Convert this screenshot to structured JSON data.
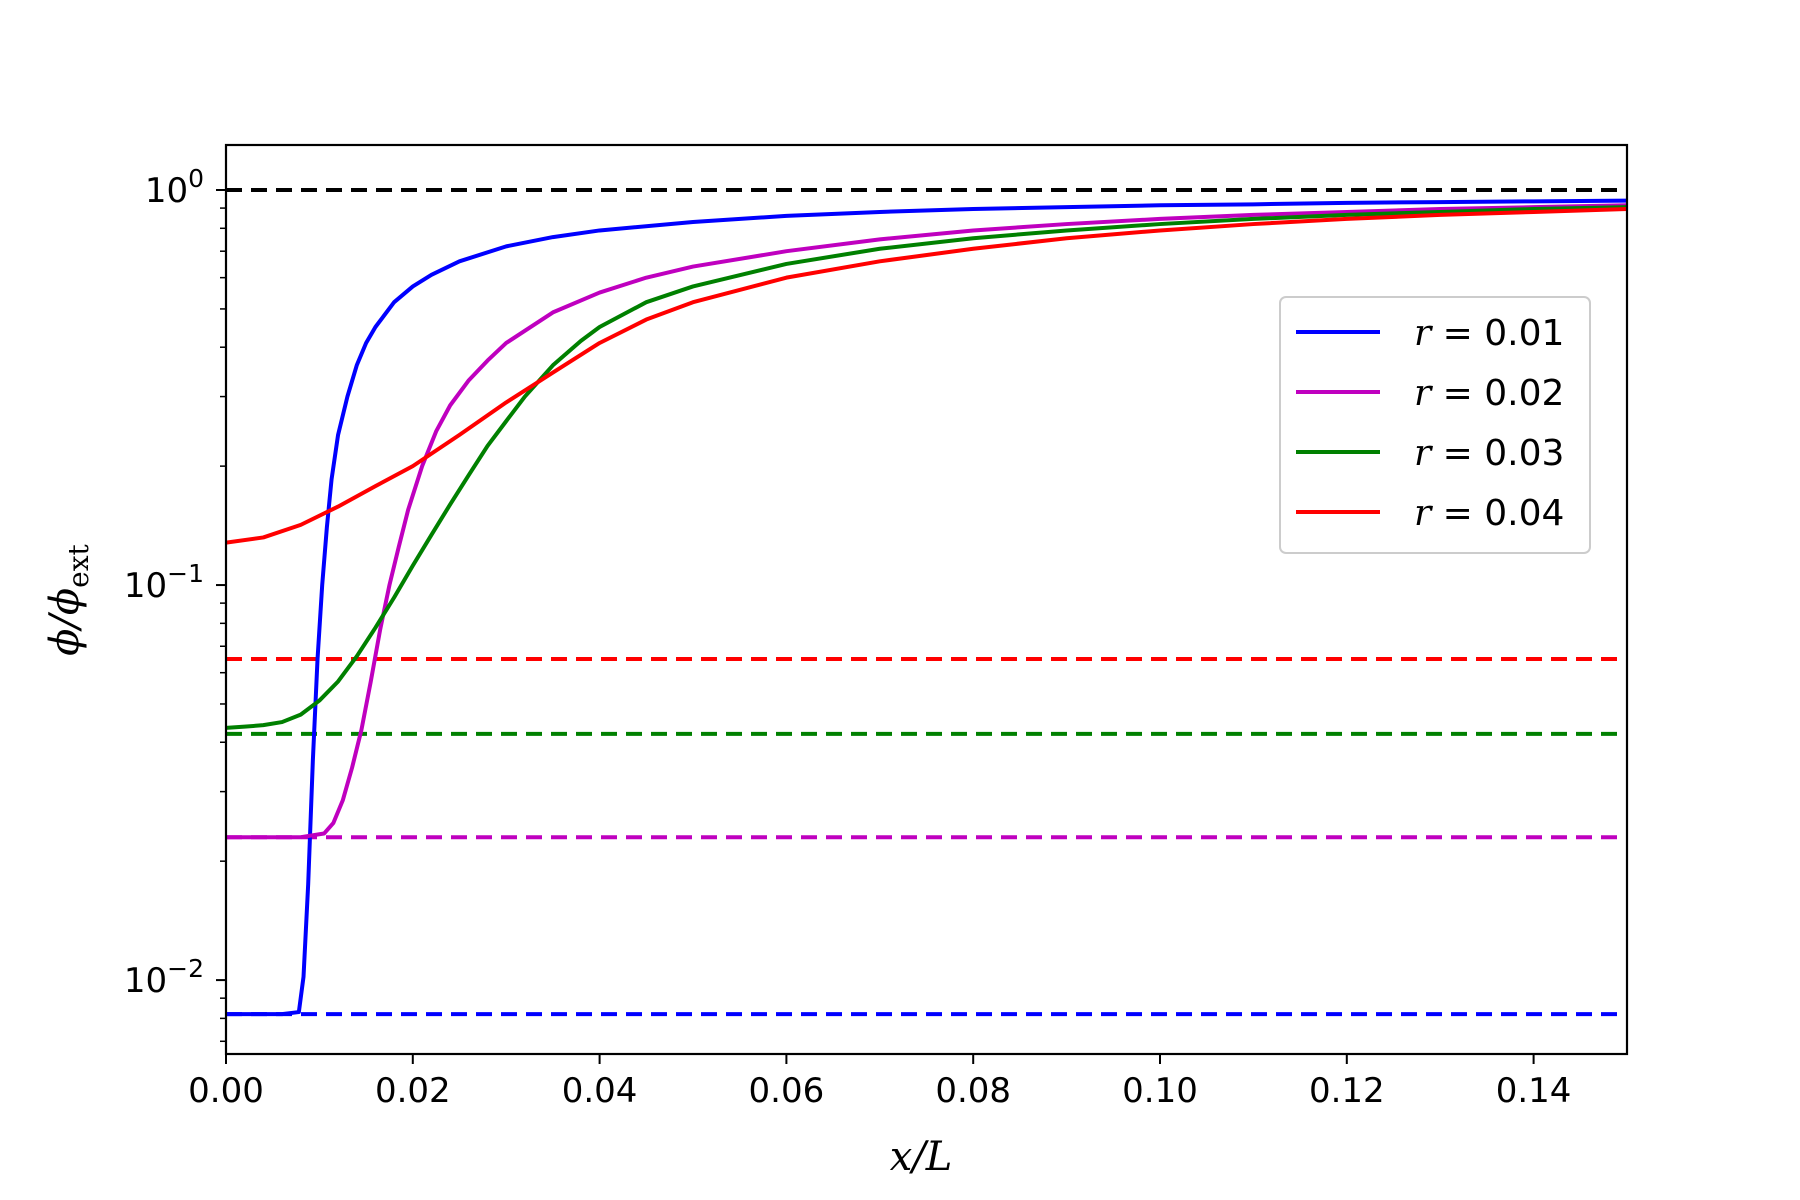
{
  "chart_data": {
    "type": "line",
    "xlabel": "x/L",
    "ylabel": "ϕ/ϕ_ext",
    "xlim": [
      0,
      0.15
    ],
    "ylim": [
      0.0065,
      1.3
    ],
    "yscale": "log",
    "grid": false,
    "legend_position": "right",
    "x_ticks": [
      {
        "value": 0.0,
        "label": "0.00"
      },
      {
        "value": 0.02,
        "label": "0.02"
      },
      {
        "value": 0.04,
        "label": "0.04"
      },
      {
        "value": 0.06,
        "label": "0.06"
      },
      {
        "value": 0.08,
        "label": "0.08"
      },
      {
        "value": 0.1,
        "label": "0.10"
      },
      {
        "value": 0.12,
        "label": "0.12"
      },
      {
        "value": 0.14,
        "label": "0.14"
      }
    ],
    "y_ticks": [
      {
        "value": 1,
        "base": "10",
        "exp": "0"
      },
      {
        "value": 0.1,
        "base": "10",
        "exp": "−1"
      },
      {
        "value": 0.01,
        "base": "10",
        "exp": "−2"
      }
    ],
    "series": [
      {
        "name": "r = 0.01",
        "color": "#0000ff",
        "x": [
          0,
          0.002,
          0.004,
          0.006,
          0.0078,
          0.0083,
          0.0088,
          0.0093,
          0.0098,
          0.0103,
          0.0108,
          0.0113,
          0.012,
          0.013,
          0.014,
          0.015,
          0.016,
          0.018,
          0.02,
          0.022,
          0.025,
          0.03,
          0.035,
          0.04,
          0.05,
          0.06,
          0.07,
          0.08,
          0.09,
          0.1,
          0.11,
          0.12,
          0.13,
          0.14,
          0.15
        ],
        "y": [
          0.0082,
          0.0082,
          0.0082,
          0.0082,
          0.0083,
          0.0102,
          0.0175,
          0.036,
          0.065,
          0.1,
          0.14,
          0.185,
          0.24,
          0.3,
          0.36,
          0.41,
          0.45,
          0.52,
          0.57,
          0.61,
          0.66,
          0.72,
          0.76,
          0.79,
          0.83,
          0.86,
          0.88,
          0.895,
          0.905,
          0.915,
          0.92,
          0.928,
          0.932,
          0.936,
          0.94
        ]
      },
      {
        "name": "r = 0.02",
        "color": "#bf00bf",
        "x": [
          0,
          0.004,
          0.008,
          0.0105,
          0.0115,
          0.0125,
          0.0135,
          0.0145,
          0.0155,
          0.0165,
          0.0175,
          0.0185,
          0.0195,
          0.021,
          0.0225,
          0.024,
          0.026,
          0.028,
          0.03,
          0.035,
          0.04,
          0.045,
          0.05,
          0.06,
          0.07,
          0.08,
          0.09,
          0.1,
          0.11,
          0.12,
          0.13,
          0.14,
          0.15
        ],
        "y": [
          0.023,
          0.023,
          0.023,
          0.0235,
          0.025,
          0.0285,
          0.0345,
          0.043,
          0.057,
          0.077,
          0.1,
          0.125,
          0.155,
          0.2,
          0.245,
          0.285,
          0.33,
          0.37,
          0.41,
          0.49,
          0.55,
          0.6,
          0.64,
          0.7,
          0.75,
          0.79,
          0.82,
          0.845,
          0.865,
          0.88,
          0.895,
          0.905,
          0.915
        ]
      },
      {
        "name": "r = 0.03",
        "color": "#008000",
        "x": [
          0,
          0.002,
          0.004,
          0.006,
          0.008,
          0.01,
          0.012,
          0.014,
          0.016,
          0.018,
          0.02,
          0.022,
          0.024,
          0.026,
          0.028,
          0.03,
          0.032,
          0.035,
          0.038,
          0.04,
          0.045,
          0.05,
          0.06,
          0.07,
          0.08,
          0.09,
          0.1,
          0.11,
          0.12,
          0.13,
          0.14,
          0.15
        ],
        "y": [
          0.0435,
          0.0438,
          0.0442,
          0.045,
          0.047,
          0.051,
          0.057,
          0.066,
          0.078,
          0.093,
          0.112,
          0.134,
          0.16,
          0.19,
          0.225,
          0.26,
          0.3,
          0.36,
          0.415,
          0.45,
          0.52,
          0.57,
          0.65,
          0.71,
          0.755,
          0.79,
          0.82,
          0.845,
          0.865,
          0.88,
          0.895,
          0.905
        ]
      },
      {
        "name": "r = 0.04",
        "color": "#ff0000",
        "x": [
          0,
          0.004,
          0.008,
          0.012,
          0.016,
          0.02,
          0.025,
          0.03,
          0.035,
          0.04,
          0.045,
          0.05,
          0.06,
          0.07,
          0.08,
          0.09,
          0.1,
          0.11,
          0.12,
          0.13,
          0.14,
          0.15
        ],
        "y": [
          0.128,
          0.132,
          0.142,
          0.158,
          0.178,
          0.2,
          0.24,
          0.29,
          0.345,
          0.41,
          0.47,
          0.52,
          0.6,
          0.66,
          0.71,
          0.755,
          0.79,
          0.82,
          0.845,
          0.865,
          0.88,
          0.895
        ]
      }
    ],
    "reference_lines": [
      {
        "y": 1.0,
        "color": "#000000",
        "style": "dashed"
      },
      {
        "y": 0.065,
        "color": "#ff0000",
        "style": "dashed"
      },
      {
        "y": 0.042,
        "color": "#008000",
        "style": "dashed"
      },
      {
        "y": 0.023,
        "color": "#bf00bf",
        "style": "dashed"
      },
      {
        "y": 0.0082,
        "color": "#0000ff",
        "style": "dashed"
      }
    ],
    "legend": [
      {
        "label": "r = 0.01",
        "color": "#0000ff"
      },
      {
        "label": "r = 0.02",
        "color": "#bf00bf"
      },
      {
        "label": "r = 0.03",
        "color": "#008000"
      },
      {
        "label": "r = 0.04",
        "color": "#ff0000"
      }
    ]
  }
}
